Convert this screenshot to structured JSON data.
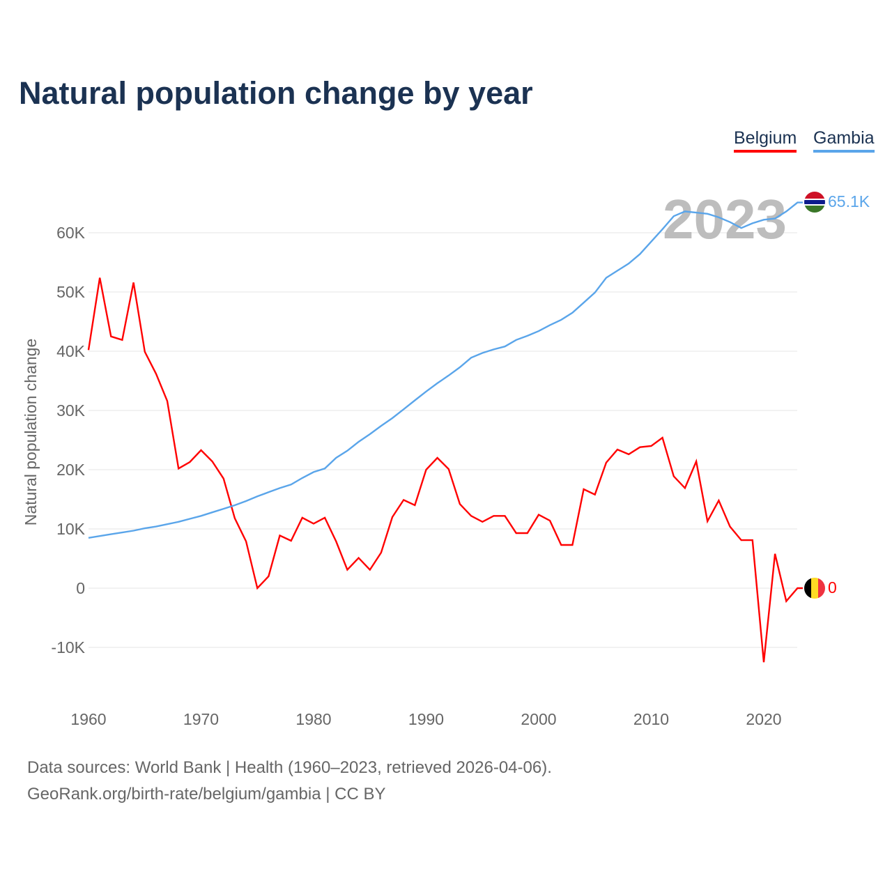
{
  "title": "Natural population change by year",
  "legend": [
    {
      "label": "Belgium",
      "color": "#ff0000"
    },
    {
      "label": "Gambia",
      "color": "#5aa5ea"
    }
  ],
  "year_watermark": "2023",
  "end_labels": {
    "gambia": "65.1K",
    "belgium": "0"
  },
  "footer": {
    "line1": "Data sources: World Bank | Health (1960–2023, retrieved 2026-04-06).",
    "line2": "GeoRank.org/birth-rate/belgium/gambia | CC BY"
  },
  "chart_data": {
    "type": "line",
    "title": "Natural population change by year",
    "xlabel": "",
    "ylabel": "Natural population change",
    "xlim": [
      1960,
      2023
    ],
    "ylim": [
      -15000,
      66000
    ],
    "x_ticks": [
      1960,
      1970,
      1980,
      1990,
      2000,
      2010,
      2020
    ],
    "x_tick_labels": [
      "1960",
      "1970",
      "1980",
      "1990",
      "2000",
      "2010",
      "2020"
    ],
    "y_ticks": [
      -10000,
      0,
      10000,
      20000,
      30000,
      40000,
      50000,
      60000
    ],
    "y_tick_labels": [
      "-10K",
      "0",
      "10K",
      "20K",
      "30K",
      "40K",
      "50K",
      "60K"
    ],
    "grid": true,
    "legend_position": "top-right",
    "x_start": 1960,
    "series": [
      {
        "name": "Belgium",
        "color": "#ff0000",
        "values": [
          40200,
          52400,
          42500,
          41900,
          51600,
          39900,
          36200,
          31600,
          20200,
          21300,
          23300,
          21400,
          18500,
          11800,
          7900,
          0,
          2000,
          8900,
          8000,
          11900,
          10900,
          11900,
          7900,
          3100,
          5100,
          3100,
          6000,
          12000,
          14900,
          14000,
          20000,
          22000,
          20100,
          14200,
          12200,
          11200,
          12200,
          12200,
          9300,
          9300,
          12400,
          11400,
          7300,
          7300,
          16700,
          15800,
          21200,
          23400,
          22600,
          23800,
          24000,
          25400,
          18900,
          16900,
          21400,
          11300,
          14800,
          10400,
          8100,
          8100,
          -12500,
          5800,
          -2200,
          0
        ]
      },
      {
        "name": "Gambia",
        "color": "#5aa5ea",
        "values": [
          8500,
          8800,
          9100,
          9400,
          9700,
          10100,
          10400,
          10800,
          11200,
          11700,
          12200,
          12800,
          13400,
          14000,
          14700,
          15500,
          16200,
          16900,
          17500,
          18600,
          19600,
          20200,
          22000,
          23200,
          24700,
          26000,
          27400,
          28700,
          30200,
          31700,
          33200,
          34600,
          35900,
          37300,
          38900,
          39700,
          40300,
          40800,
          41900,
          42600,
          43400,
          44400,
          45300,
          46500,
          48200,
          49900,
          52400,
          53600,
          54800,
          56400,
          58500,
          60600,
          62800,
          63600,
          63400,
          63200,
          62600,
          61800,
          60800,
          61600,
          62200,
          62400,
          63600,
          65100
        ]
      }
    ]
  }
}
